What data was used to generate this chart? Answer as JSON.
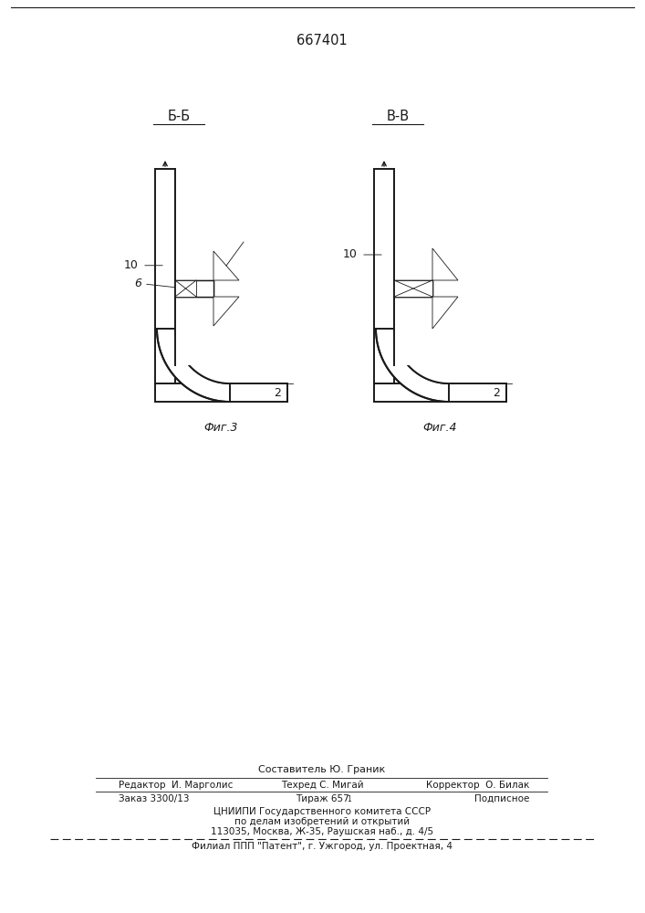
{
  "patent_number": "667401",
  "title_bb": "Б-Б",
  "title_vv": "В-В",
  "fig3_label": "Фиг.3",
  "fig4_label": "Фиг.4",
  "footer_line1": "Составитель Ю. Граник",
  "footer_line2_left": "Редактор  И. Марголис",
  "footer_line2_mid": "Техред С. Мигай",
  "footer_line2_right": "Корректор  О. Билак",
  "footer_line3_left": "Заказ 3300/13",
  "footer_line3_mid": "Тираж 657",
  "footer_line3_sup": "1",
  "footer_line3_right": "Подписное",
  "footer_line4": "ЦНИИПИ Государственного комитета СССР",
  "footer_line5": "по делам изобретений и открытий",
  "footer_line6": "113035, Москва, Ж-35, Раушская наб., д. 4/5",
  "footer_line7": "Филиал ППП \"Патент\", г. Ужгород, ул. Проектная, 4",
  "bg_color": "#ffffff",
  "line_color": "#1a1a1a"
}
